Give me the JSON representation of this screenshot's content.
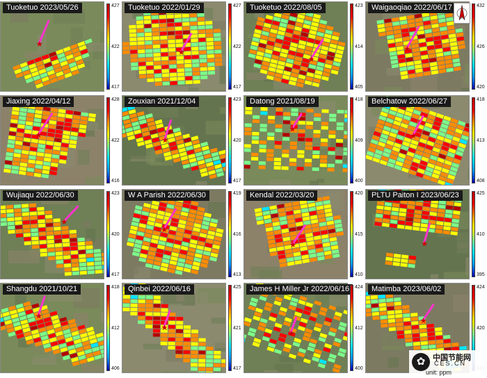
{
  "units": "unit: ppm",
  "logo": {
    "cn": "中国节能网",
    "en": "CES.CN",
    "mark": "✿"
  },
  "colors": {
    "scale": [
      "#0000b0",
      "#0096ff",
      "#00e5ff",
      "#7cfc8a",
      "#ffff00",
      "#ff8c00",
      "#ff0000",
      "#b30000"
    ],
    "source_arrow": "#ff33cc",
    "source_marker": "#cc0000"
  },
  "chart_data": [
    {
      "type": "heatmap",
      "title": "Tuoketuo 2023/05/26",
      "colorbar_ticks": [
        427,
        422,
        417
      ],
      "clim": [
        417,
        427
      ],
      "footprint": "plume-bowl"
    },
    {
      "type": "heatmap",
      "title": "Tuoketuo 2022/01/29",
      "colorbar_ticks": [
        427,
        422,
        417
      ],
      "clim": [
        417,
        427
      ],
      "footprint": "tilted-ellipse"
    },
    {
      "type": "heatmap",
      "title": "Tuoketuo 2022/08/05",
      "colorbar_ticks": [
        423,
        414,
        405
      ],
      "clim": [
        405,
        423
      ],
      "footprint": "ellipse"
    },
    {
      "type": "heatmap",
      "title": "Waigaoqiao 2022/06/17",
      "colorbar_ticks": [
        432,
        426,
        420
      ],
      "clim": [
        420,
        432
      ],
      "footprint": "fan"
    },
    {
      "type": "heatmap",
      "title": "Jiaxing 2022/04/12",
      "colorbar_ticks": [
        428,
        422,
        416
      ],
      "clim": [
        416,
        428
      ],
      "footprint": "fan-left"
    },
    {
      "type": "heatmap",
      "title": "Zouxian 2021/12/04",
      "colorbar_ticks": [
        423,
        420,
        417
      ],
      "clim": [
        417,
        423
      ],
      "footprint": "diagonal-strip"
    },
    {
      "type": "heatmap",
      "title": "Datong 2021/08/19",
      "colorbar_ticks": [
        418,
        409,
        400
      ],
      "clim": [
        400,
        418
      ],
      "footprint": "scattered"
    },
    {
      "type": "heatmap",
      "title": "Belchatow 2022/06/27",
      "colorbar_ticks": [
        418,
        413,
        408
      ],
      "clim": [
        408,
        418
      ],
      "footprint": "wide-rect"
    },
    {
      "type": "heatmap",
      "title": "Wujiaqu 2022/06/30",
      "colorbar_ticks": [
        423,
        420,
        417
      ],
      "clim": [
        417,
        423
      ],
      "footprint": "diagonal-band"
    },
    {
      "type": "heatmap",
      "title": "W A Parish 2022/06/30",
      "colorbar_ticks": [
        419,
        416,
        413
      ],
      "clim": [
        413,
        419
      ],
      "footprint": "ellipse"
    },
    {
      "type": "heatmap",
      "title": "Kendal 2022/03/20",
      "colorbar_ticks": [
        420,
        415,
        410
      ],
      "clim": [
        410,
        420
      ],
      "footprint": "fan"
    },
    {
      "type": "heatmap",
      "title": "PLTU Paiton I 2023/06/23",
      "colorbar_ticks": [
        425,
        410,
        395
      ],
      "clim": [
        395,
        425
      ],
      "footprint": "coastal-top"
    },
    {
      "type": "heatmap",
      "title": "Shangdu 2021/10/21",
      "colorbar_ticks": [
        418,
        412,
        406
      ],
      "clim": [
        406,
        418
      ],
      "footprint": "diagonal-band"
    },
    {
      "type": "heatmap",
      "title": "Qinbei 2022/06/16",
      "colorbar_ticks": [
        425,
        421,
        417
      ],
      "clim": [
        417,
        425
      ],
      "footprint": "diagonal-strip"
    },
    {
      "type": "heatmap",
      "title": "James H Miller Jr 2022/06/16",
      "colorbar_ticks": [
        424,
        412,
        400
      ],
      "clim": [
        400,
        424
      ],
      "footprint": "scattered"
    },
    {
      "type": "heatmap",
      "title": "Matimba 2023/06/02",
      "colorbar_ticks": [
        424,
        420,
        416
      ],
      "clim": [
        416,
        424
      ],
      "footprint": "diagonal-strip"
    }
  ]
}
